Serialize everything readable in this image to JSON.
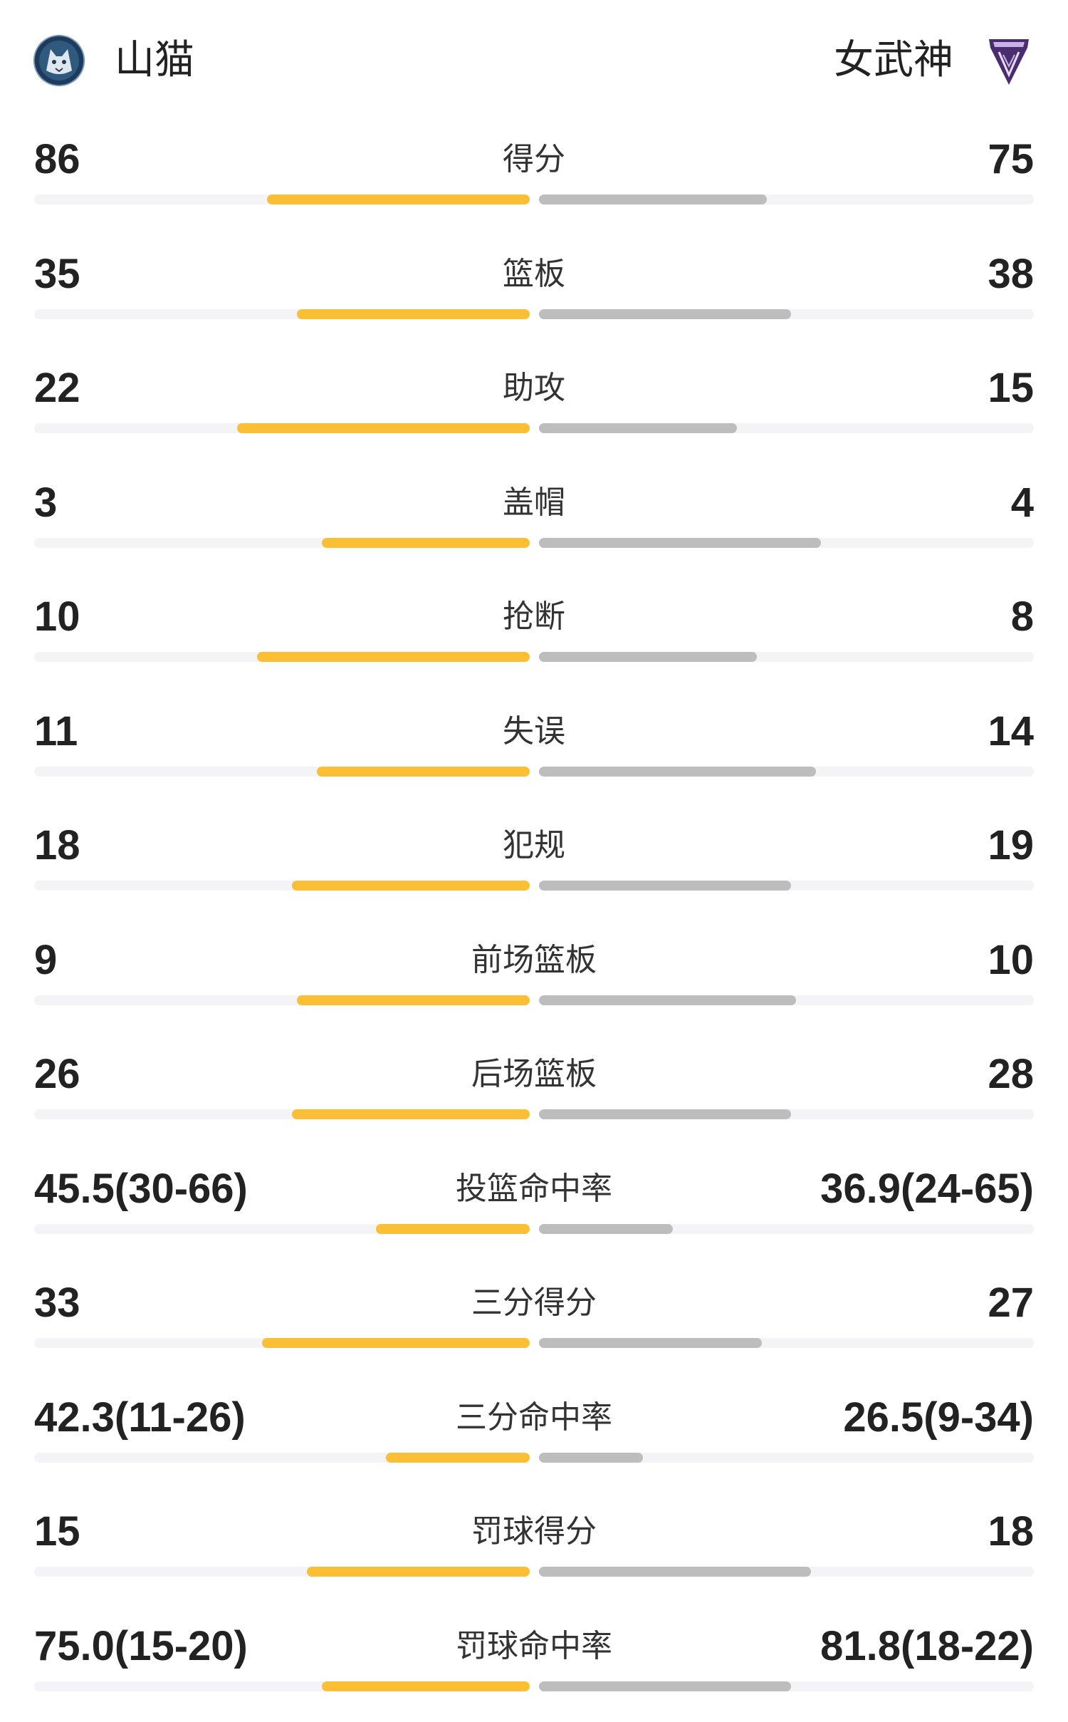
{
  "header": {
    "home": {
      "name": "山猫",
      "logo_icon": "minnesota-lynx-logo-icon",
      "logo_color": "#1e3a5c"
    },
    "away": {
      "name": "女武神",
      "logo_icon": "golden-state-valkyries-logo-icon",
      "logo_color": "#4b2c6e"
    }
  },
  "colors": {
    "home_bar": "#fbbf36",
    "away_bar": "#bdbdbd",
    "track": "#f4f4f6"
  },
  "stats": [
    {
      "label": "得分",
      "home": "86",
      "away": "75",
      "home_share": 0.53,
      "away_share": 0.46
    },
    {
      "label": "篮板",
      "home": "35",
      "away": "38",
      "home_share": 0.47,
      "away_share": 0.51
    },
    {
      "label": "助攻",
      "home": "22",
      "away": "15",
      "home_share": 0.59,
      "away_share": 0.4
    },
    {
      "label": "盖帽",
      "home": "3",
      "away": "4",
      "home_share": 0.42,
      "away_share": 0.57
    },
    {
      "label": "抢断",
      "home": "10",
      "away": "8",
      "home_share": 0.55,
      "away_share": 0.44
    },
    {
      "label": "失误",
      "home": "11",
      "away": "14",
      "home_share": 0.43,
      "away_share": 0.56
    },
    {
      "label": "犯规",
      "home": "18",
      "away": "19",
      "home_share": 0.48,
      "away_share": 0.51
    },
    {
      "label": "前场篮板",
      "home": "9",
      "away": "10",
      "home_share": 0.47,
      "away_share": 0.52
    },
    {
      "label": "后场篮板",
      "home": "26",
      "away": "28",
      "home_share": 0.48,
      "away_share": 0.51
    },
    {
      "label": "投篮命中率",
      "home": "45.5(30-66)",
      "away": "36.9(24-65)",
      "home_share": 0.31,
      "away_share": 0.27
    },
    {
      "label": "三分得分",
      "home": "33",
      "away": "27",
      "home_share": 0.54,
      "away_share": 0.45
    },
    {
      "label": "三分命中率",
      "home": "42.3(11-26)",
      "away": "26.5(9-34)",
      "home_share": 0.29,
      "away_share": 0.21
    },
    {
      "label": "罚球得分",
      "home": "15",
      "away": "18",
      "home_share": 0.45,
      "away_share": 0.55
    },
    {
      "label": "罚球命中率",
      "home": "75.0(15-20)",
      "away": "81.8(18-22)",
      "home_share": 0.42,
      "away_share": 0.51
    }
  ]
}
